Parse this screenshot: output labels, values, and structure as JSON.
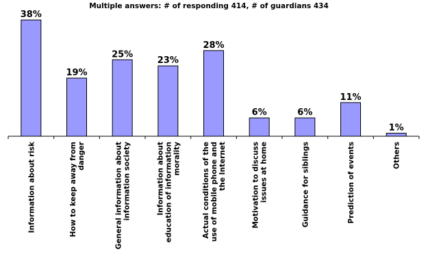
{
  "chart_data": {
    "type": "bar",
    "title": "",
    "subtitle": "Multiple answers: # of responding 414, # of guardians 434",
    "xlabel": "",
    "ylabel": "",
    "ylim": [
      0,
      40
    ],
    "grid": false,
    "legend": "none",
    "bar_color": "#9999ff",
    "categories": [
      "Information about risk",
      "How to keep away from danger",
      "General information about information society",
      "Information about education of information morality",
      "Actual conditions of the use of mobile phone and the Internet",
      "Motivation to discuss issues at home",
      "Guidance for siblings",
      "Prediction of events",
      "Others"
    ],
    "category_lines": [
      [
        "Information about risk"
      ],
      [
        "How to keep away from",
        "danger"
      ],
      [
        "General information about",
        "information society"
      ],
      [
        "Information about",
        "education of information",
        "morality"
      ],
      [
        "Actual conditions of the",
        "use of mobile phone and",
        "the Internet"
      ],
      [
        "Motivation to discuss",
        "issues at home"
      ],
      [
        "Guidance for siblings"
      ],
      [
        "Prediction of events"
      ],
      [
        "Others"
      ]
    ],
    "values": [
      38,
      19,
      25,
      23,
      28,
      6,
      6,
      11,
      1
    ],
    "data_labels": [
      "38%",
      "19%",
      "25%",
      "23%",
      "28%",
      "6%",
      "6%",
      "11%",
      "1%"
    ]
  }
}
